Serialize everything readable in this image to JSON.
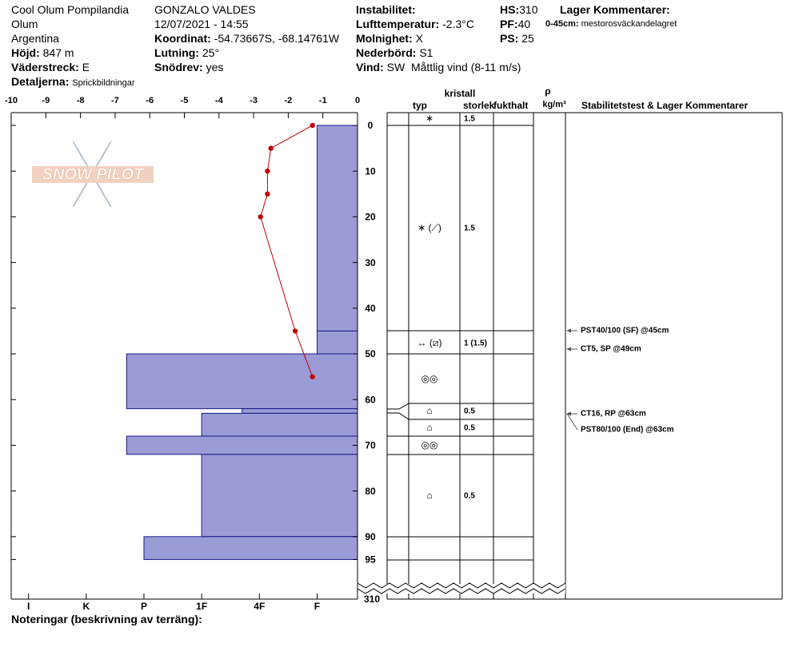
{
  "header": {
    "location": [
      "Cool Olum Pompilandia",
      "Olum",
      "Argentina"
    ],
    "elevation": {
      "label": "Höjd:",
      "value": "847 m"
    },
    "aspect": {
      "label": "Väderstreck:",
      "value": "E"
    },
    "details": {
      "label": "Detaljerna:",
      "value": "Sprickbildningar"
    },
    "observer": "GONZALO VALDES",
    "datetime": "12/07/2021 - 14:55",
    "coordinates": {
      "label": "Koordinat:",
      "value": "-54.73667S, -68.14761W"
    },
    "slope": {
      "label": "Lutning:",
      "value": "25°"
    },
    "wind_loading": {
      "label": "Snödrev:",
      "value": "yes"
    },
    "instability": {
      "label": "Instabilitet:"
    },
    "air_temp": {
      "label": "Lufttemperatur:",
      "value": "-2.3°C"
    },
    "sky": {
      "label": "Molnighet:",
      "value": "X"
    },
    "precip": {
      "label": "Nederbörd:",
      "value": "S1"
    },
    "wind": {
      "label": "Vind:",
      "value": "SW  Måttlig vind (8-11 m/s)"
    },
    "hs": {
      "label": "HS:",
      "value": "310"
    },
    "pf": {
      "label": "PF:",
      "value": "40"
    },
    "ps": {
      "label": "PS:",
      "value": "25"
    },
    "layer_comments": {
      "title": "Lager Kommentarer:",
      "label": "0-45cm:",
      "value": "mestorosväckandelagret"
    }
  },
  "chart_data": {
    "type": "snow-profile",
    "xlim": [
      -10,
      0
    ],
    "xticks": [
      -10,
      -9,
      -8,
      -7,
      -6,
      -5,
      -4,
      -3,
      -2,
      -1,
      0
    ],
    "ylim": [
      0,
      95
    ],
    "yticks": [
      0,
      10,
      20,
      30,
      40,
      50,
      60,
      70,
      80,
      90,
      95
    ],
    "ybreak": 310,
    "temperature": {
      "color": "#c00000",
      "depth": [
        0,
        5,
        10,
        15,
        20,
        45,
        55
      ],
      "values": [
        -1.3,
        -2.5,
        -2.6,
        -2.6,
        -2.8,
        -1.8,
        -1.3
      ]
    },
    "hardness_lim": [
      0.3,
      6.3
    ],
    "hardness_ticks": [
      {
        "value": 6,
        "label": "I"
      },
      {
        "value": 5,
        "label": "K"
      },
      {
        "value": 4,
        "label": "P"
      },
      {
        "value": 3,
        "label": "1F"
      },
      {
        "value": 2,
        "label": "4F"
      },
      {
        "value": 1,
        "label": "F"
      }
    ],
    "layers": {
      "color": "#9b9bd6",
      "top": [
        0,
        45,
        50,
        62,
        63,
        68,
        72,
        90
      ],
      "bottom": [
        45,
        50,
        62,
        63,
        68,
        72,
        90,
        95
      ],
      "hardness": [
        1,
        1,
        4.3,
        2.3,
        3,
        4.3,
        3,
        4
      ]
    }
  },
  "table": {
    "headers": {
      "crystal": "kristall",
      "type": "typ",
      "size": "storlek",
      "moisture": "fukthalt",
      "density": "ρ",
      "density_unit": "kg/m³",
      "comments": "Stabilitetstest & Lager Kommentarer"
    },
    "rows": [
      {
        "type": "∗",
        "size": "1.5"
      },
      {
        "type": "∗ (⟋)",
        "size": "1.5"
      },
      {
        "type": "↔ (⧄)",
        "size": "1 (1.5)"
      },
      {
        "type": "◎◎"
      },
      {
        "type": "⌂",
        "size": "0.5"
      },
      {
        "type": "⌂",
        "size": "0.5"
      },
      {
        "type": "◎◎"
      },
      {
        "type": "⌂",
        "size": "0.5"
      }
    ],
    "stability_tests": [
      "PST40/100 (SF) @45cm",
      "CT5, SP @49cm",
      "CT16, RP @63cm",
      "PST80/100 (End) @63cm"
    ]
  },
  "footer": "Noteringar (beskrivning av terräng):",
  "watermark": "SNOW PILOT"
}
